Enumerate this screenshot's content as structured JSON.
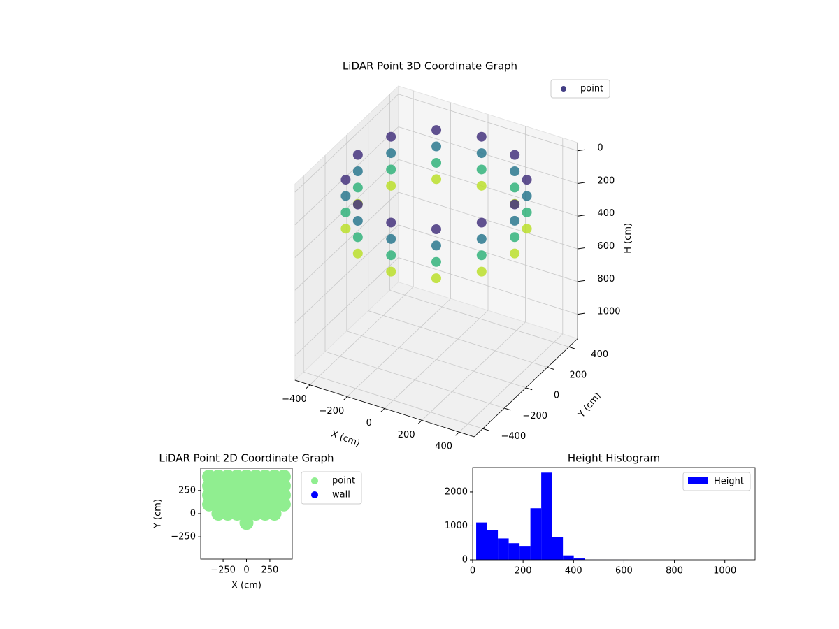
{
  "chart_data": [
    {
      "type": "scatter3d",
      "title": "LiDAR Point 3D Coordinate Graph",
      "xlabel": "X (cm)",
      "ylabel": "Y (cm)",
      "zlabel": "H (cm)",
      "series": [
        {
          "name": "point",
          "color": "#433e85",
          "colormap": "viridis",
          "x": [
            420,
            364,
            210,
            0,
            -210,
            -364,
            -420,
            -364,
            -210,
            0,
            210,
            364,
            420,
            364,
            210,
            0,
            -210,
            -364,
            -420,
            -364,
            -210,
            0,
            210,
            364,
            420,
            364,
            210,
            0,
            -210,
            -364,
            -420,
            -364,
            -210,
            0,
            210,
            364,
            420,
            364,
            210,
            0,
            -210,
            -364,
            -420,
            -364,
            -210,
            0,
            210,
            364
          ],
          "y": [
            0,
            210,
            364,
            420,
            364,
            210,
            0,
            -210,
            -364,
            -420,
            -364,
            -210,
            0,
            210,
            364,
            420,
            364,
            210,
            0,
            -210,
            -364,
            -420,
            -364,
            -210,
            0,
            210,
            364,
            420,
            364,
            210,
            0,
            -210,
            -364,
            -420,
            -364,
            -210,
            0,
            210,
            364,
            420,
            364,
            210,
            0,
            -210,
            -364,
            -420,
            -364,
            -210
          ],
          "z": [
            50,
            50,
            50,
            50,
            50,
            50,
            50,
            50,
            50,
            50,
            50,
            50,
            150,
            150,
            150,
            150,
            150,
            150,
            150,
            150,
            150,
            150,
            150,
            150,
            250,
            250,
            250,
            250,
            250,
            250,
            250,
            250,
            250,
            250,
            250,
            250,
            350,
            350,
            350,
            350,
            350,
            350,
            350,
            350,
            350,
            350,
            350,
            350
          ]
        }
      ],
      "xlim": [
        -480,
        480
      ],
      "ylim": [
        -480,
        480
      ],
      "zlim": [
        -50,
        1150
      ],
      "z_inverted": true,
      "xticks": [
        {
          "value": -400,
          "label": "−400"
        },
        {
          "value": -200,
          "label": "−200"
        },
        0,
        200,
        400
      ],
      "yticks": [
        {
          "value": -400,
          "label": "−400"
        },
        {
          "value": -200,
          "label": "−200"
        },
        0,
        200,
        400
      ],
      "zticks": [
        0,
        200,
        400,
        600,
        800,
        1000
      ],
      "grid": true,
      "legend": "upper right"
    },
    {
      "type": "scatter",
      "title": "LiDAR Point 2D Coordinate Graph",
      "xlabel": "X (cm)",
      "ylabel": "Y (cm)",
      "series": [
        {
          "name": "point",
          "color": "#90ee90",
          "x": [
            0,
            -300,
            -200,
            -100,
            0,
            100,
            200,
            300,
            -400,
            -300,
            -200,
            -100,
            0,
            100,
            200,
            300,
            400,
            -400,
            -300,
            -200,
            -100,
            0,
            100,
            200,
            300,
            400,
            -400,
            -300,
            -200,
            -100,
            0,
            100,
            200,
            300,
            400,
            -400,
            -300,
            -200,
            -100,
            0,
            100,
            200,
            300,
            400
          ],
          "y": [
            -100,
            0,
            0,
            0,
            0,
            0,
            0,
            0,
            100,
            100,
            100,
            100,
            100,
            100,
            100,
            100,
            100,
            200,
            200,
            200,
            200,
            200,
            200,
            200,
            200,
            200,
            300,
            300,
            300,
            300,
            300,
            300,
            300,
            300,
            300,
            400,
            400,
            400,
            400,
            400,
            400,
            400,
            400,
            400
          ]
        },
        {
          "name": "wall",
          "color": "#0000ff",
          "x": [],
          "y": []
        }
      ],
      "xlim": [
        -490,
        490
      ],
      "ylim": [
        -490,
        490
      ],
      "xticks": [
        {
          "value": -250,
          "label": "−250"
        },
        0,
        250
      ],
      "yticks": [
        {
          "value": -250,
          "label": "−250"
        },
        0,
        250
      ],
      "legend": "outside right"
    },
    {
      "type": "histogram",
      "title": "Height Histogram",
      "series": [
        {
          "name": "Height",
          "color": "#0000ff",
          "bins": [
            14,
            57,
            100,
            143,
            186,
            229,
            272,
            315,
            358,
            401,
            444,
            487,
            530,
            573,
            616,
            659,
            702,
            745,
            788,
            831,
            874,
            917,
            960,
            1003,
            1046,
            1089
          ],
          "values": [
            1100,
            880,
            630,
            490,
            410,
            1520,
            2570,
            680,
            130,
            40,
            3,
            2,
            1,
            1,
            0,
            0,
            0,
            0,
            0,
            0,
            0,
            0,
            0,
            0,
            1
          ]
        }
      ],
      "xlim": [
        0,
        1120
      ],
      "ylim": [
        0,
        2720
      ],
      "xticks": [
        0,
        200,
        400,
        600,
        800,
        1000
      ],
      "yticks": [
        0,
        1000,
        2000
      ],
      "legend": "upper right"
    }
  ]
}
